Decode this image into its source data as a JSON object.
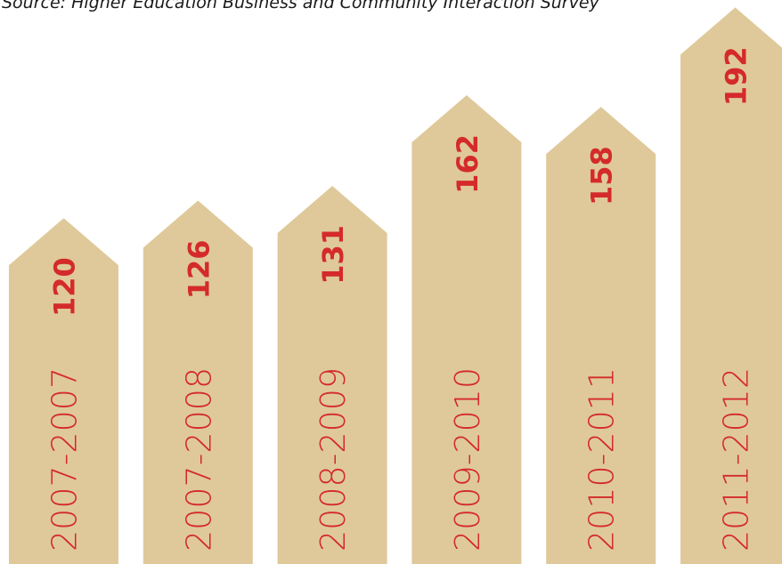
{
  "chart_data": {
    "type": "arrow-bar",
    "subtitle": "Source: Higher Education Business and Community Interaction Survey",
    "categories": [
      "2007-2007",
      "2007-2008",
      "2008-2009",
      "2009-2010",
      "2010-2011",
      "2011-2012"
    ],
    "values": [
      120,
      126,
      131,
      162,
      158,
      192
    ],
    "color": "#dfc99a",
    "label_color": "#d42a2a"
  }
}
